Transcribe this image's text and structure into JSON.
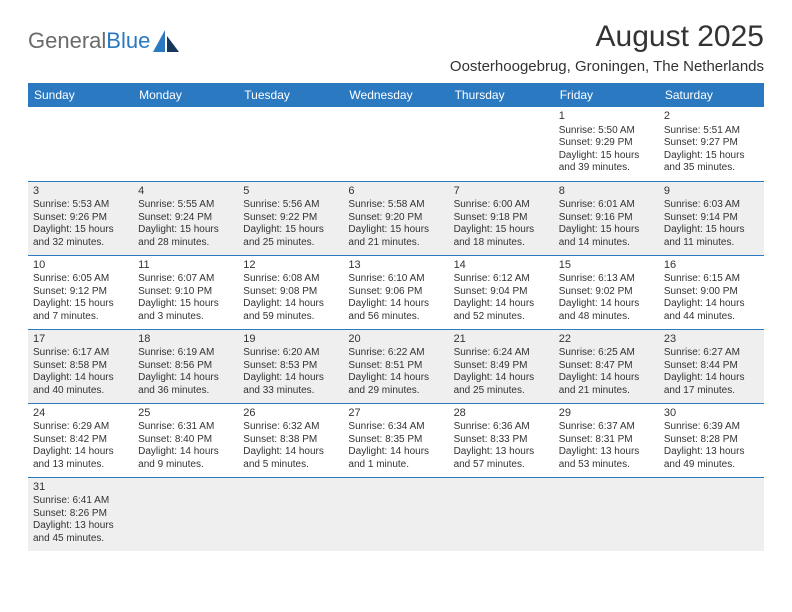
{
  "logo": {
    "prefix": "General",
    "suffix": "Blue"
  },
  "title": "August 2025",
  "subtitle": "Oosterhoogebrug, Groningen, The Netherlands",
  "colors": {
    "header_bg": "#2a79c1",
    "header_text": "#ffffff",
    "row_alt_bg": "#efefef",
    "cell_border": "#2a79c1",
    "text": "#333333",
    "logo_accent": "#2a79c1",
    "logo_gray": "#6a6a6a"
  },
  "typography": {
    "title_fontsize": 30,
    "subtitle_fontsize": 15,
    "weekday_fontsize": 12,
    "daynum_fontsize": 11,
    "body_fontsize": 10
  },
  "weekdays": [
    "Sunday",
    "Monday",
    "Tuesday",
    "Wednesday",
    "Thursday",
    "Friday",
    "Saturday"
  ],
  "weeks": [
    [
      null,
      null,
      null,
      null,
      null,
      {
        "n": "1",
        "sr": "Sunrise: 5:50 AM",
        "ss": "Sunset: 9:29 PM",
        "dl": "Daylight: 15 hours and 39 minutes."
      },
      {
        "n": "2",
        "sr": "Sunrise: 5:51 AM",
        "ss": "Sunset: 9:27 PM",
        "dl": "Daylight: 15 hours and 35 minutes."
      }
    ],
    [
      {
        "n": "3",
        "sr": "Sunrise: 5:53 AM",
        "ss": "Sunset: 9:26 PM",
        "dl": "Daylight: 15 hours and 32 minutes."
      },
      {
        "n": "4",
        "sr": "Sunrise: 5:55 AM",
        "ss": "Sunset: 9:24 PM",
        "dl": "Daylight: 15 hours and 28 minutes."
      },
      {
        "n": "5",
        "sr": "Sunrise: 5:56 AM",
        "ss": "Sunset: 9:22 PM",
        "dl": "Daylight: 15 hours and 25 minutes."
      },
      {
        "n": "6",
        "sr": "Sunrise: 5:58 AM",
        "ss": "Sunset: 9:20 PM",
        "dl": "Daylight: 15 hours and 21 minutes."
      },
      {
        "n": "7",
        "sr": "Sunrise: 6:00 AM",
        "ss": "Sunset: 9:18 PM",
        "dl": "Daylight: 15 hours and 18 minutes."
      },
      {
        "n": "8",
        "sr": "Sunrise: 6:01 AM",
        "ss": "Sunset: 9:16 PM",
        "dl": "Daylight: 15 hours and 14 minutes."
      },
      {
        "n": "9",
        "sr": "Sunrise: 6:03 AM",
        "ss": "Sunset: 9:14 PM",
        "dl": "Daylight: 15 hours and 11 minutes."
      }
    ],
    [
      {
        "n": "10",
        "sr": "Sunrise: 6:05 AM",
        "ss": "Sunset: 9:12 PM",
        "dl": "Daylight: 15 hours and 7 minutes."
      },
      {
        "n": "11",
        "sr": "Sunrise: 6:07 AM",
        "ss": "Sunset: 9:10 PM",
        "dl": "Daylight: 15 hours and 3 minutes."
      },
      {
        "n": "12",
        "sr": "Sunrise: 6:08 AM",
        "ss": "Sunset: 9:08 PM",
        "dl": "Daylight: 14 hours and 59 minutes."
      },
      {
        "n": "13",
        "sr": "Sunrise: 6:10 AM",
        "ss": "Sunset: 9:06 PM",
        "dl": "Daylight: 14 hours and 56 minutes."
      },
      {
        "n": "14",
        "sr": "Sunrise: 6:12 AM",
        "ss": "Sunset: 9:04 PM",
        "dl": "Daylight: 14 hours and 52 minutes."
      },
      {
        "n": "15",
        "sr": "Sunrise: 6:13 AM",
        "ss": "Sunset: 9:02 PM",
        "dl": "Daylight: 14 hours and 48 minutes."
      },
      {
        "n": "16",
        "sr": "Sunrise: 6:15 AM",
        "ss": "Sunset: 9:00 PM",
        "dl": "Daylight: 14 hours and 44 minutes."
      }
    ],
    [
      {
        "n": "17",
        "sr": "Sunrise: 6:17 AM",
        "ss": "Sunset: 8:58 PM",
        "dl": "Daylight: 14 hours and 40 minutes."
      },
      {
        "n": "18",
        "sr": "Sunrise: 6:19 AM",
        "ss": "Sunset: 8:56 PM",
        "dl": "Daylight: 14 hours and 36 minutes."
      },
      {
        "n": "19",
        "sr": "Sunrise: 6:20 AM",
        "ss": "Sunset: 8:53 PM",
        "dl": "Daylight: 14 hours and 33 minutes."
      },
      {
        "n": "20",
        "sr": "Sunrise: 6:22 AM",
        "ss": "Sunset: 8:51 PM",
        "dl": "Daylight: 14 hours and 29 minutes."
      },
      {
        "n": "21",
        "sr": "Sunrise: 6:24 AM",
        "ss": "Sunset: 8:49 PM",
        "dl": "Daylight: 14 hours and 25 minutes."
      },
      {
        "n": "22",
        "sr": "Sunrise: 6:25 AM",
        "ss": "Sunset: 8:47 PM",
        "dl": "Daylight: 14 hours and 21 minutes."
      },
      {
        "n": "23",
        "sr": "Sunrise: 6:27 AM",
        "ss": "Sunset: 8:44 PM",
        "dl": "Daylight: 14 hours and 17 minutes."
      }
    ],
    [
      {
        "n": "24",
        "sr": "Sunrise: 6:29 AM",
        "ss": "Sunset: 8:42 PM",
        "dl": "Daylight: 14 hours and 13 minutes."
      },
      {
        "n": "25",
        "sr": "Sunrise: 6:31 AM",
        "ss": "Sunset: 8:40 PM",
        "dl": "Daylight: 14 hours and 9 minutes."
      },
      {
        "n": "26",
        "sr": "Sunrise: 6:32 AM",
        "ss": "Sunset: 8:38 PM",
        "dl": "Daylight: 14 hours and 5 minutes."
      },
      {
        "n": "27",
        "sr": "Sunrise: 6:34 AM",
        "ss": "Sunset: 8:35 PM",
        "dl": "Daylight: 14 hours and 1 minute."
      },
      {
        "n": "28",
        "sr": "Sunrise: 6:36 AM",
        "ss": "Sunset: 8:33 PM",
        "dl": "Daylight: 13 hours and 57 minutes."
      },
      {
        "n": "29",
        "sr": "Sunrise: 6:37 AM",
        "ss": "Sunset: 8:31 PM",
        "dl": "Daylight: 13 hours and 53 minutes."
      },
      {
        "n": "30",
        "sr": "Sunrise: 6:39 AM",
        "ss": "Sunset: 8:28 PM",
        "dl": "Daylight: 13 hours and 49 minutes."
      }
    ],
    [
      {
        "n": "31",
        "sr": "Sunrise: 6:41 AM",
        "ss": "Sunset: 8:26 PM",
        "dl": "Daylight: 13 hours and 45 minutes."
      },
      null,
      null,
      null,
      null,
      null,
      null
    ]
  ]
}
